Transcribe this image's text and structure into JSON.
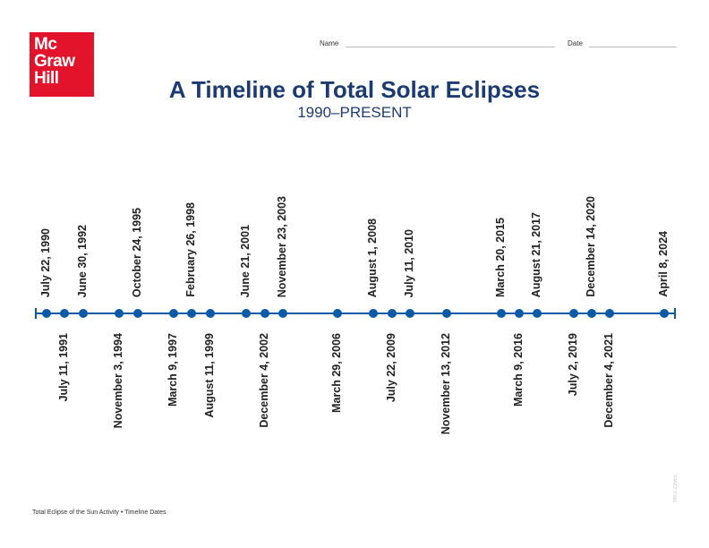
{
  "logo": {
    "text": [
      "Mc",
      "Graw",
      "Hill"
    ]
  },
  "header": {
    "name_label": "Name",
    "date_label": "Date"
  },
  "title": "A Timeline of Total Solar Eclipses",
  "subtitle": "1990–PRESENT",
  "events": [
    {
      "date": "July 22, 1990",
      "year": 1990,
      "side": "above"
    },
    {
      "date": "July 11, 1991",
      "year": 1991,
      "side": "below"
    },
    {
      "date": "June 30, 1992",
      "year": 1992,
      "side": "above"
    },
    {
      "date": "November 3, 1994",
      "year": 1994,
      "side": "below"
    },
    {
      "date": "October 24, 1995",
      "year": 1995,
      "side": "above"
    },
    {
      "date": "March 9, 1997",
      "year": 1997,
      "side": "below"
    },
    {
      "date": "February 26, 1998",
      "year": 1998,
      "side": "above"
    },
    {
      "date": "August 11, 1999",
      "year": 1999,
      "side": "below"
    },
    {
      "date": "June 21, 2001",
      "year": 2001,
      "side": "above"
    },
    {
      "date": "December 4, 2002",
      "year": 2002,
      "side": "below"
    },
    {
      "date": "November 23, 2003",
      "year": 2003,
      "side": "above"
    },
    {
      "date": "March 29, 2006",
      "year": 2006,
      "side": "below"
    },
    {
      "date": "August 1, 2008",
      "year": 2008,
      "side": "above"
    },
    {
      "date": "July 22, 2009",
      "year": 2009,
      "side": "below"
    },
    {
      "date": "July 11, 2010",
      "year": 2010,
      "side": "above"
    },
    {
      "date": "November 13, 2012",
      "year": 2012,
      "side": "below"
    },
    {
      "date": "March 20, 2015",
      "year": 2015,
      "side": "above"
    },
    {
      "date": "March 9, 2016",
      "year": 2016,
      "side": "below"
    },
    {
      "date": "August 21, 2017",
      "year": 2017,
      "side": "above"
    },
    {
      "date": "July 2, 2019",
      "year": 2019,
      "side": "below"
    },
    {
      "date": "December 14, 2020",
      "year": 2020,
      "side": "above"
    },
    {
      "date": "December 4, 2021",
      "year": 2021,
      "side": "below"
    },
    {
      "date": "April 8, 2024",
      "year": 2024,
      "side": "above"
    }
  ],
  "footer": "Total Eclipse of the Sun Activity • Timeline Dates",
  "code": "MK3 23565",
  "colors": {
    "brand": "#e3132c",
    "title": "#1d3b73",
    "timeline": "#0b5aa8"
  }
}
